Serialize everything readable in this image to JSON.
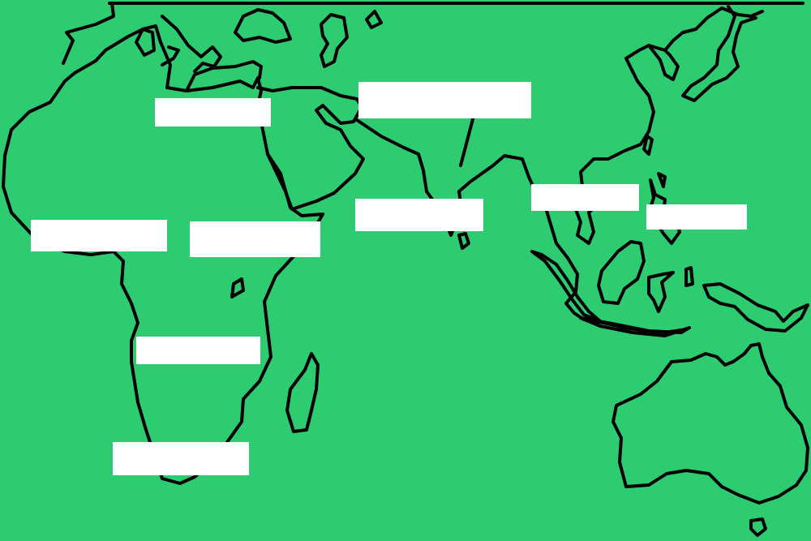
{
  "map": {
    "background_color": "#2ecc71",
    "outline_color": "#000000",
    "label_box_color": "#ffffff",
    "labels": [
      {
        "id": "north-africa",
        "text": ""
      },
      {
        "id": "south-asia",
        "text": ""
      },
      {
        "id": "west-africa",
        "text": ""
      },
      {
        "id": "east-africa",
        "text": ""
      },
      {
        "id": "indian-ocean",
        "text": ""
      },
      {
        "id": "southeast-asia",
        "text": ""
      },
      {
        "id": "maritime-asia",
        "text": ""
      },
      {
        "id": "central-southern-africa",
        "text": ""
      },
      {
        "id": "southern-africa",
        "text": ""
      }
    ]
  }
}
